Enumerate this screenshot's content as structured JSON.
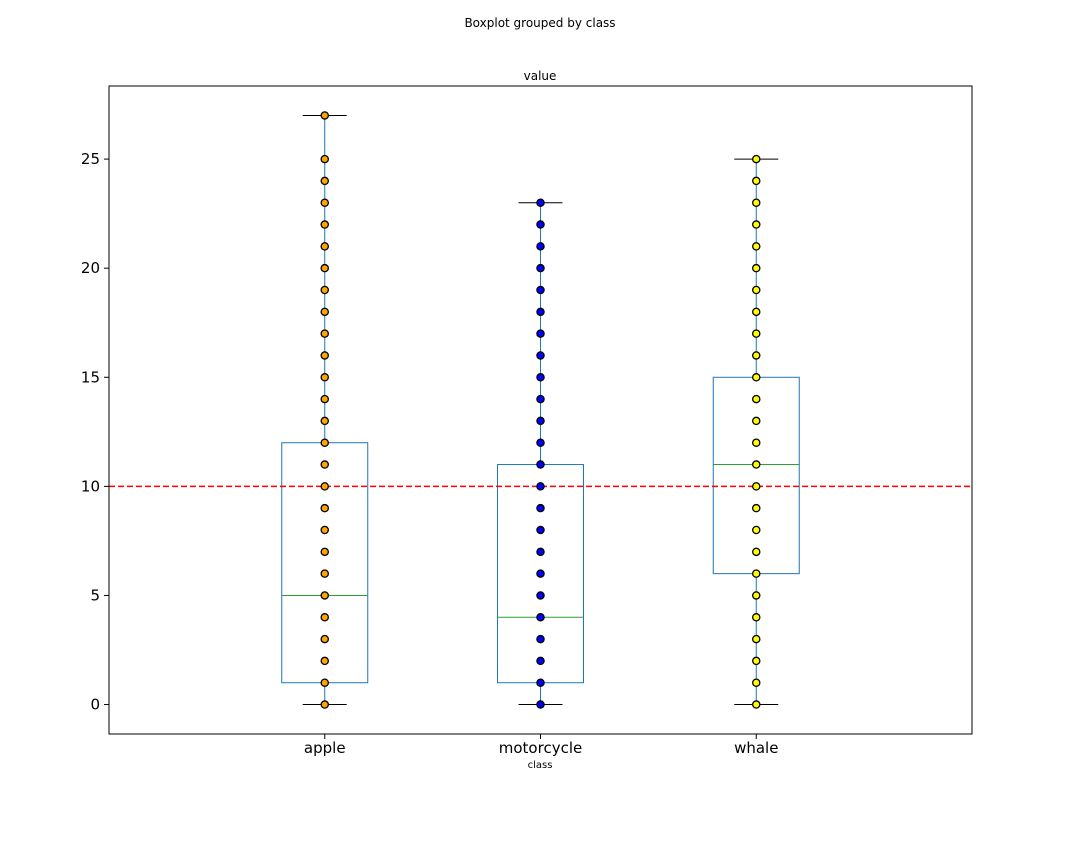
{
  "figure": {
    "suptitle": "Boxplot grouped by class"
  },
  "chart_data": {
    "type": "box",
    "title": "value",
    "xlabel": "class",
    "ylabel": "",
    "ylim": [
      -1.35,
      28.35
    ],
    "yticks": [
      0,
      5,
      10,
      15,
      20,
      25
    ],
    "grid": false,
    "reference_line": {
      "y": 10,
      "color": "#ff0000",
      "style": "dashed"
    },
    "colors": {
      "box": "#1f77b4",
      "median": "#2ca02c",
      "whisker_cap": "#000000"
    },
    "categories": [
      "apple",
      "motorcycle",
      "whale"
    ],
    "boxes": [
      {
        "category": "apple",
        "whislo": 0,
        "q1": 1,
        "median": 5,
        "q3": 12,
        "whishi": 27,
        "point_color": "#ffa500",
        "points": [
          0,
          1,
          2,
          3,
          4,
          5,
          6,
          7,
          8,
          9,
          10,
          11,
          12,
          13,
          14,
          15,
          16,
          17,
          18,
          19,
          20,
          21,
          22,
          23,
          24,
          25,
          27
        ]
      },
      {
        "category": "motorcycle",
        "whislo": 0,
        "q1": 1,
        "median": 4,
        "q3": 11,
        "whishi": 23,
        "point_color": "#0000ff",
        "points": [
          0,
          1,
          2,
          3,
          4,
          5,
          6,
          7,
          8,
          9,
          10,
          11,
          12,
          13,
          14,
          15,
          16,
          17,
          18,
          19,
          20,
          21,
          22,
          23
        ]
      },
      {
        "category": "whale",
        "whislo": 0,
        "q1": 6,
        "median": 11,
        "q3": 15,
        "whishi": 25,
        "point_color": "#ffff00",
        "points": [
          0,
          1,
          2,
          3,
          4,
          5,
          6,
          7,
          8,
          9,
          10,
          11,
          12,
          13,
          14,
          15,
          16,
          17,
          18,
          19,
          20,
          21,
          22,
          23,
          24,
          25
        ]
      }
    ]
  }
}
